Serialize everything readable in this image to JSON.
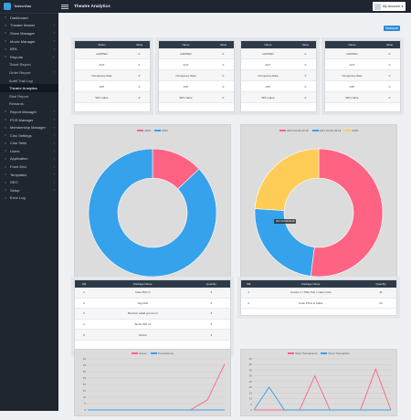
{
  "app": {
    "brand": "TechnoVista",
    "page_title": "Theatre Analytics",
    "account_label": "My Account"
  },
  "sidebar": {
    "items": [
      {
        "label": "Dashboard",
        "icon": "dashboard-icon",
        "chev": ""
      },
      {
        "label": "Theater Master",
        "icon": "grid-icon",
        "chev": "‹"
      },
      {
        "label": "Show Manager",
        "icon": "grid-icon",
        "chev": "‹"
      },
      {
        "label": "Movie Manager",
        "icon": "grid-icon",
        "chev": "‹"
      },
      {
        "label": "BPA",
        "icon": "grid-icon",
        "chev": "‹"
      },
      {
        "label": "Reports",
        "icon": "grid-icon",
        "chev": "⌄"
      }
    ],
    "sub_items": [
      {
        "label": "Ticket Report"
      },
      {
        "label": "Order Report",
        "chev": "‹"
      },
      {
        "label": "Audit Trail Log"
      },
      {
        "label": "Theatre Analytics",
        "active": true
      },
      {
        "label": "Slab Report"
      },
      {
        "label": "Rewards"
      }
    ],
    "items2": [
      {
        "label": "Report Manager",
        "chev": "‹"
      },
      {
        "label": "POS Manager",
        "chev": "‹"
      },
      {
        "label": "Membership Manager",
        "chev": "‹"
      },
      {
        "label": "Cinc Settings",
        "chev": "‹"
      },
      {
        "label": "Cine Sells",
        "chev": "‹"
      },
      {
        "label": "Users",
        "chev": "‹"
      },
      {
        "label": "Application",
        "chev": "‹"
      },
      {
        "label": "Front End",
        "chev": "‹"
      },
      {
        "label": "Templates",
        "chev": "‹"
      },
      {
        "label": "SEO",
        "chev": "‹"
      },
      {
        "label": "Setup",
        "chev": "‹"
      },
      {
        "label": "Error Log",
        "chev": ""
      }
    ]
  },
  "toolbar": {
    "export_label": "Dashpart"
  },
  "stats_tables": [
    {
      "headers": [
        "Status",
        "Value"
      ],
      "rows": [
        [
          "HAPPEN",
          "0"
        ],
        [
          "ACT",
          "0"
        ],
        [
          "Occupancy Rate",
          "0"
        ],
        [
          "ATP",
          "0"
        ],
        [
          "SPH value",
          "0"
        ]
      ]
    },
    {
      "headers": [
        "Name",
        "Value"
      ],
      "rows": [
        [
          "HAPPEN",
          "0"
        ],
        [
          "ACT",
          "0"
        ],
        [
          "Occupancy Rate",
          "0"
        ],
        [
          "ATP",
          "0"
        ],
        [
          "SPH value",
          "0"
        ]
      ]
    },
    {
      "headers": [
        "Name",
        "Value"
      ],
      "rows": [
        [
          "HAPPEN",
          "0"
        ],
        [
          "ACT",
          "0"
        ],
        [
          "Occupancy Rate",
          "0"
        ],
        [
          "ATP",
          "0"
        ],
        [
          "SPH value",
          "0"
        ]
      ]
    },
    {
      "headers": [
        "Name",
        "Value"
      ],
      "rows": [
        [
          "HAPPEN",
          "0"
        ],
        [
          "ACT",
          "0"
        ],
        [
          "Occupancy Rate",
          "0"
        ],
        [
          "ATP",
          "0"
        ],
        [
          "SPH value",
          "0"
        ]
      ]
    }
  ],
  "chart_data": [
    {
      "type": "pie",
      "legend": [
        "2000",
        "2000"
      ],
      "values": [
        13,
        87
      ],
      "colors": [
        "#ff6384",
        "#36a2eb"
      ]
    },
    {
      "type": "pie",
      "legend": [
        "2017-03-30 03:16",
        "2017-03-30 03:16",
        "2018"
      ],
      "values": [
        52,
        24,
        24
      ],
      "colors": [
        "#ff6384",
        "#36a2eb",
        "#ffcd56"
      ],
      "tooltip": "2017-03-30 03:16"
    },
    {
      "type": "line",
      "legend": [
        "Stores",
        "Transactions"
      ],
      "xlabel": "",
      "ylabel": "",
      "ylim": [
        0,
        40
      ],
      "y_ticks": [
        "40",
        "35",
        "30",
        "25",
        "20",
        "15",
        "10",
        "5",
        "0"
      ],
      "series": [
        {
          "name": "Stores",
          "color": "#ff6384",
          "values": [
            0,
            0,
            0,
            0,
            0,
            0,
            0,
            8,
            36
          ]
        },
        {
          "name": "Transactions",
          "color": "#36a2eb",
          "values": [
            0,
            0,
            0,
            0,
            0,
            0,
            0,
            0,
            0
          ]
        }
      ]
    },
    {
      "type": "line",
      "legend": [
        "Total Transactions",
        "Store Transaction"
      ],
      "ylim": [
        0,
        45
      ],
      "y_ticks": [
        "45",
        "40",
        "35",
        "30",
        "25",
        "20",
        "15",
        "10",
        "5",
        "0"
      ],
      "series": [
        {
          "name": "Total Transactions",
          "color": "#ff6384",
          "values": [
            0,
            0,
            0,
            0,
            30,
            0,
            0,
            0,
            36,
            0
          ]
        },
        {
          "name": "Store Transaction",
          "color": "#36a2eb",
          "values": [
            0,
            20,
            0,
            0,
            0,
            0,
            0,
            0,
            0,
            0
          ]
        }
      ]
    }
  ],
  "product_tables": [
    {
      "headers": [
        "Sl#",
        "Package Name",
        "Quantity"
      ],
      "rows": [
        [
          "1",
          "Coke 500 ml",
          "3"
        ],
        [
          "2",
          "Veg Roll",
          "5"
        ],
        [
          "3",
          "Mexican salad (yummm)",
          "3"
        ],
        [
          "4",
          "Sprite 500 ml",
          "3"
        ],
        [
          "5",
          "Viniros",
          "3"
        ]
      ]
    },
    {
      "headers": [
        "Sl#",
        "Package Name",
        "Quantity"
      ],
      "rows": [
        [
          "1",
          "Combo 1 / Tiffet Puri / Coke Coke",
          "41"
        ],
        [
          "2",
          "Coke Pizza & Spike",
          "24"
        ]
      ]
    }
  ]
}
